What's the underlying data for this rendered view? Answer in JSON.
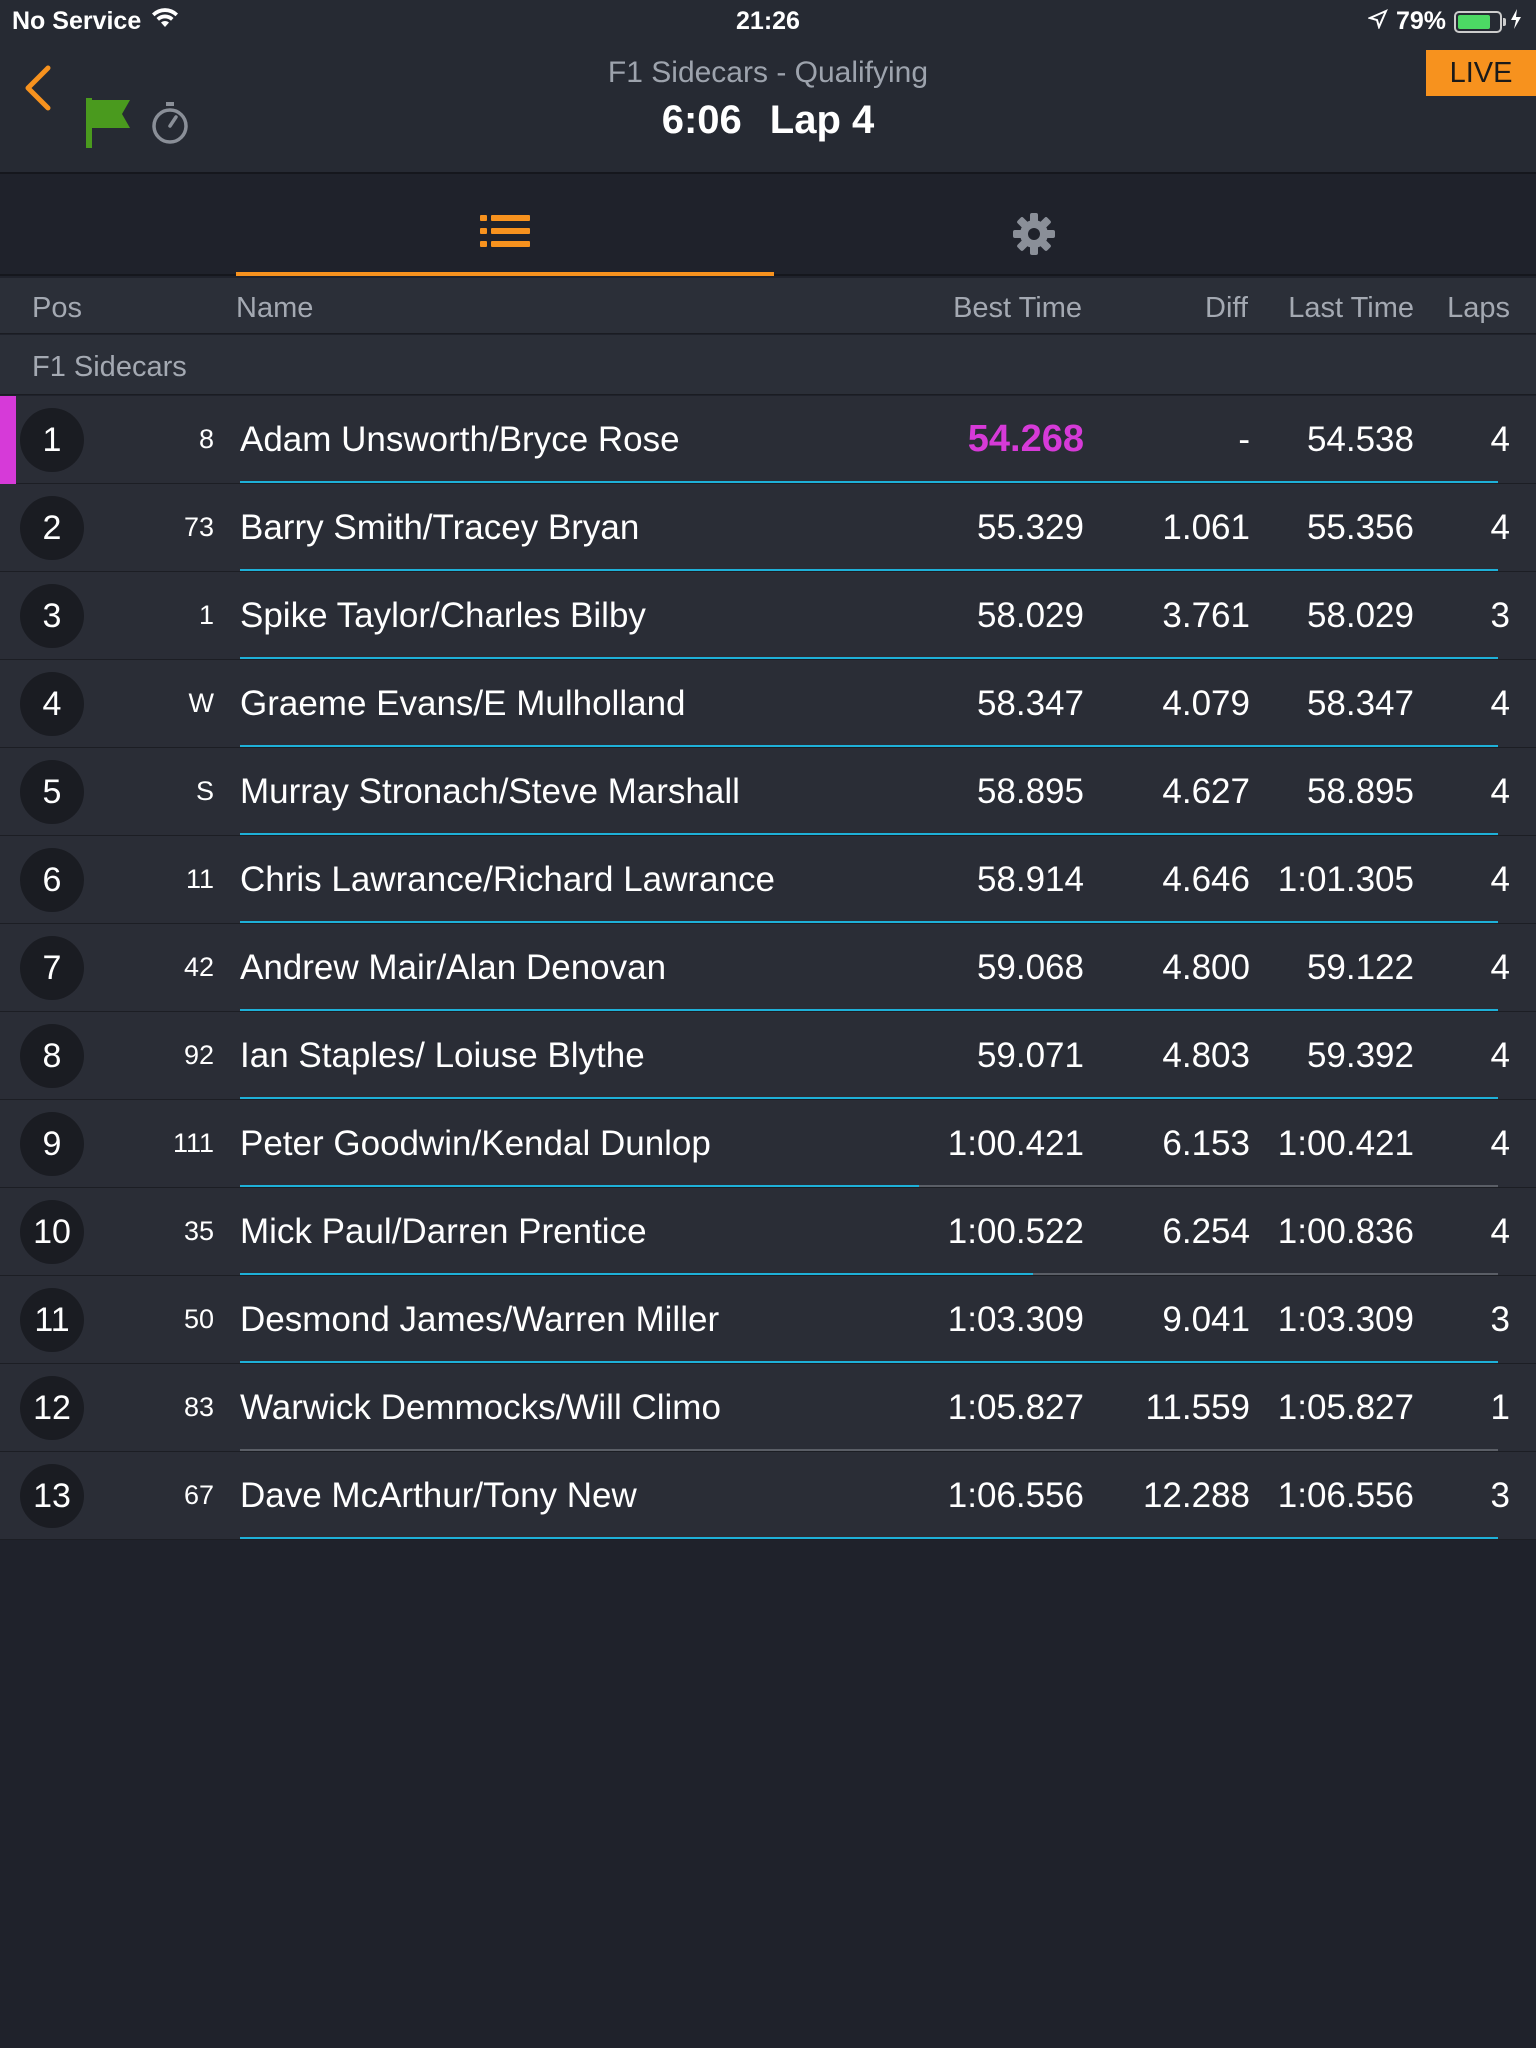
{
  "status_bar": {
    "carrier": "No Service",
    "time": "21:26",
    "battery": "79%",
    "battery_level": 0.79
  },
  "header": {
    "session_title": "F1 Sidecars - Qualifying",
    "clock": "6:06",
    "lap": "Lap 4",
    "live_label": "LIVE",
    "flag_color": "#4a9a1e"
  },
  "tabs": {
    "list_icon": "list-icon",
    "settings_icon": "gear-icon",
    "active": "list"
  },
  "columns": {
    "pos": "Pos",
    "name": "Name",
    "best_time": "Best Time",
    "diff": "Diff",
    "last_time": "Last Time",
    "laps": "Laps"
  },
  "class_name": "F1 Sidecars",
  "colors": {
    "accent": "#f7921e",
    "purple": "#d63ad8",
    "progress": "#1eb0d8"
  },
  "results": [
    {
      "pos": "1",
      "num": "8",
      "name": "Adam Unsworth/Bryce Rose",
      "best": "54.268",
      "diff": "-",
      "last": "54.538",
      "laps": "4",
      "fastest": true,
      "lap_progress": 1.0
    },
    {
      "pos": "2",
      "num": "73",
      "name": "Barry Smith/Tracey Bryan",
      "best": "55.329",
      "diff": "1.061",
      "last": "55.356",
      "laps": "4",
      "fastest": false,
      "lap_progress": 1.0
    },
    {
      "pos": "3",
      "num": "1",
      "name": "Spike Taylor/Charles Bilby",
      "best": "58.029",
      "diff": "3.761",
      "last": "58.029",
      "laps": "3",
      "fastest": false,
      "lap_progress": 1.0
    },
    {
      "pos": "4",
      "num": "W",
      "name": "Graeme Evans/E Mulholland",
      "best": "58.347",
      "diff": "4.079",
      "last": "58.347",
      "laps": "4",
      "fastest": false,
      "lap_progress": 1.0
    },
    {
      "pos": "5",
      "num": "S",
      "name": "Murray Stronach/Steve Marshall",
      "best": "58.895",
      "diff": "4.627",
      "last": "58.895",
      "laps": "4",
      "fastest": false,
      "lap_progress": 1.0
    },
    {
      "pos": "6",
      "num": "11",
      "name": "Chris Lawrance/Richard Lawrance",
      "best": "58.914",
      "diff": "4.646",
      "last": "1:01.305",
      "laps": "4",
      "fastest": false,
      "lap_progress": 1.0
    },
    {
      "pos": "7",
      "num": "42",
      "name": "Andrew Mair/Alan Denovan",
      "best": "59.068",
      "diff": "4.800",
      "last": "59.122",
      "laps": "4",
      "fastest": false,
      "lap_progress": 1.0
    },
    {
      "pos": "8",
      "num": "92",
      "name": "Ian Staples/ Loiuse Blythe",
      "best": "59.071",
      "diff": "4.803",
      "last": "59.392",
      "laps": "4",
      "fastest": false,
      "lap_progress": 1.0
    },
    {
      "pos": "9",
      "num": "111",
      "name": "Peter Goodwin/Kendal Dunlop",
      "best": "1:00.421",
      "diff": "6.153",
      "last": "1:00.421",
      "laps": "4",
      "fastest": false,
      "lap_progress": 0.54
    },
    {
      "pos": "10",
      "num": "35",
      "name": "Mick Paul/Darren Prentice",
      "best": "1:00.522",
      "diff": "6.254",
      "last": "1:00.836",
      "laps": "4",
      "fastest": false,
      "lap_progress": 0.63
    },
    {
      "pos": "11",
      "num": "50",
      "name": "Desmond James/Warren Miller",
      "best": "1:03.309",
      "diff": "9.041",
      "last": "1:03.309",
      "laps": "3",
      "fastest": false,
      "lap_progress": 1.0
    },
    {
      "pos": "12",
      "num": "83",
      "name": "Warwick Demmocks/Will Climo",
      "best": "1:05.827",
      "diff": "11.559",
      "last": "1:05.827",
      "laps": "1",
      "fastest": false,
      "lap_progress": 0.0
    },
    {
      "pos": "13",
      "num": "67",
      "name": "Dave McArthur/Tony New",
      "best": "1:06.556",
      "diff": "12.288",
      "last": "1:06.556",
      "laps": "3",
      "fastest": false,
      "lap_progress": 1.0
    }
  ]
}
